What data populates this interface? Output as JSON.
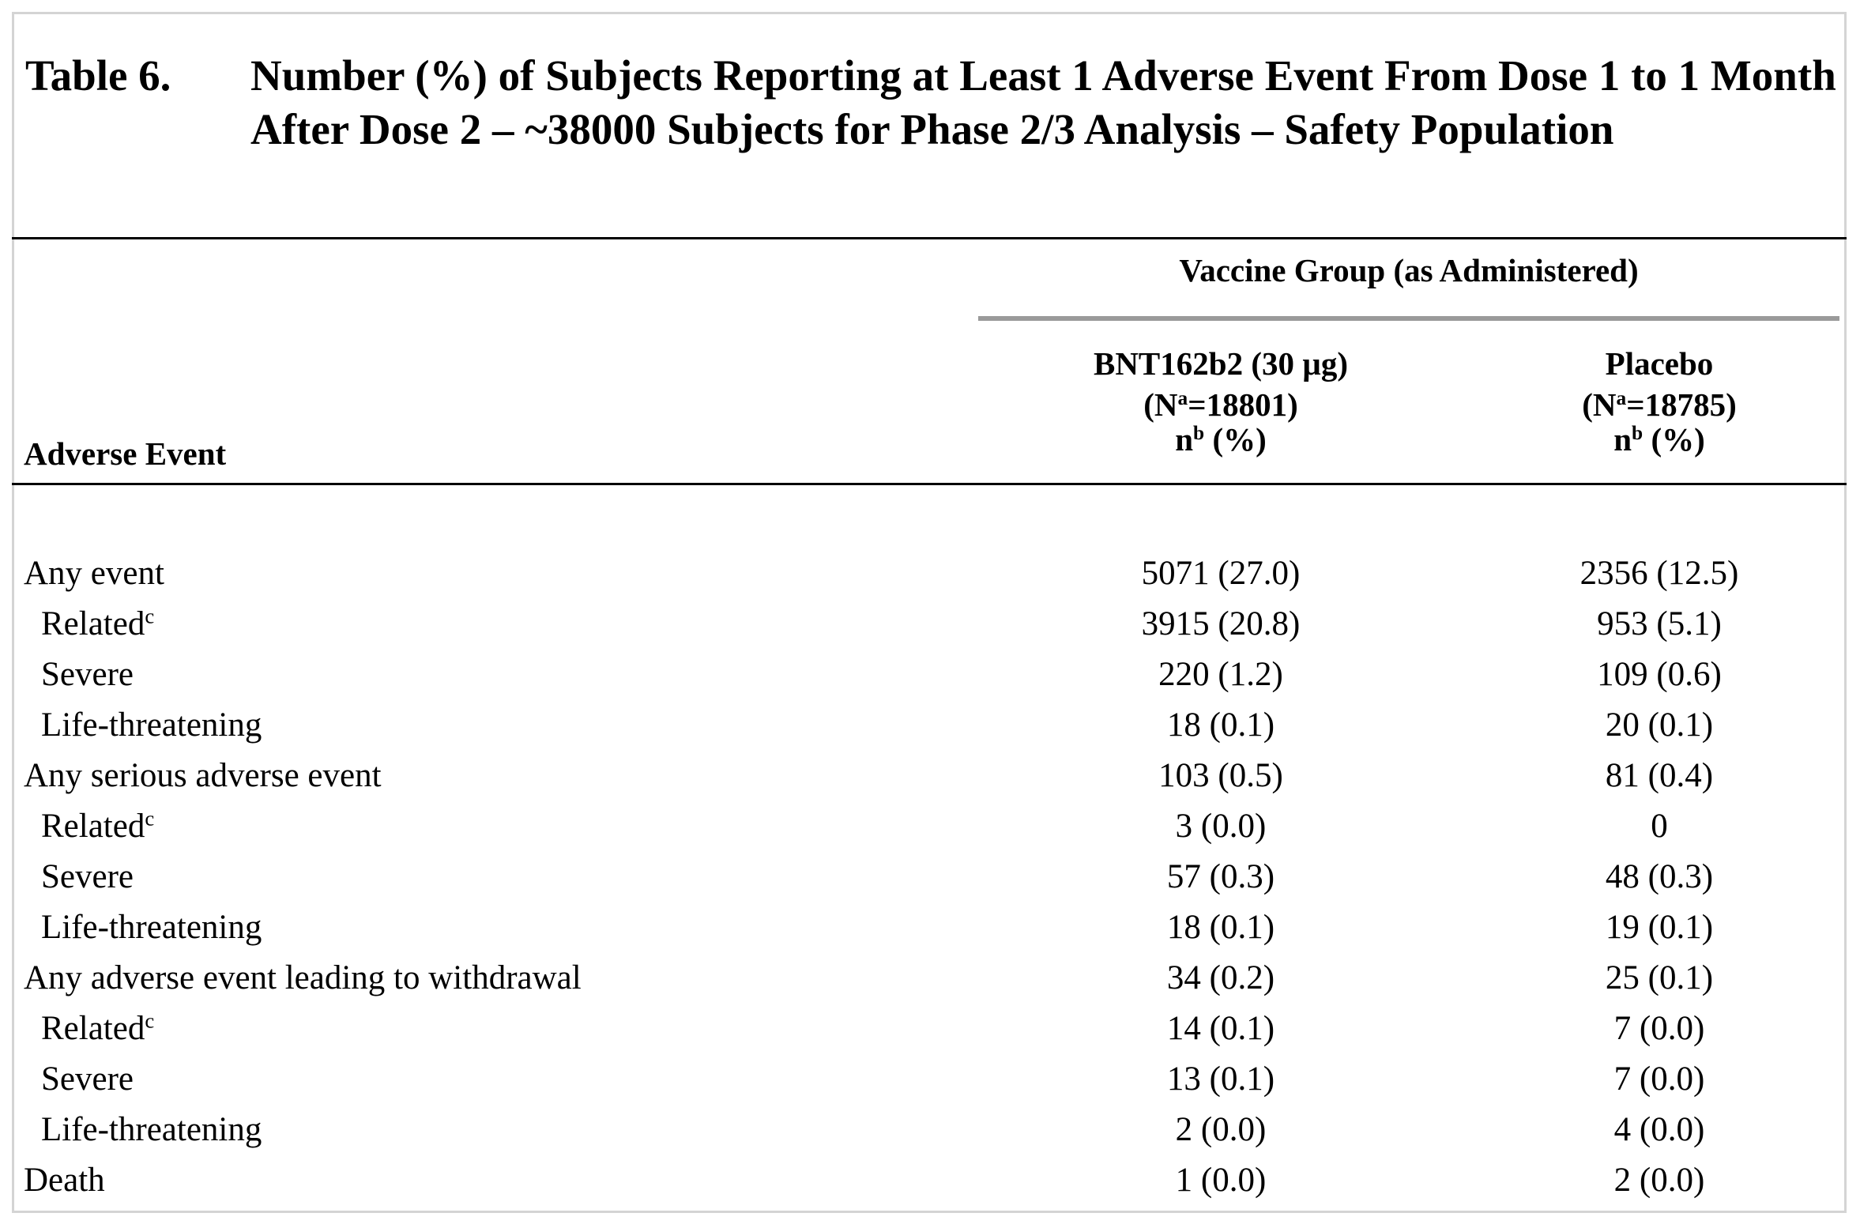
{
  "table": {
    "label": "Table 6.",
    "title": "Number (%) of Subjects Reporting at Least 1 Adverse Event From Dose 1 to 1 Month After Dose 2 – ~38000 Subjects for Phase 2/3 Analysis – Safety Population",
    "group_header": "Vaccine Group (as Administered)",
    "row_header": "Adverse Event",
    "columns": [
      {
        "name": "BNT162b2 (30 µg)",
        "n_prefix": "(N",
        "n_sup": "a",
        "n_value": "=18801)",
        "stat_prefix": "n",
        "stat_sup": "b",
        "stat_suffix": " (%)"
      },
      {
        "name": "Placebo",
        "n_prefix": "(N",
        "n_sup": "a",
        "n_value": "=18785)",
        "stat_prefix": "n",
        "stat_sup": "b",
        "stat_suffix": " (%)"
      }
    ],
    "rows": [
      {
        "label": "Any event",
        "sup": "",
        "indent": false,
        "v1": "5071 (27.0)",
        "v2": "2356 (12.5)"
      },
      {
        "label": "Related",
        "sup": "c",
        "indent": true,
        "v1": "3915 (20.8)",
        "v2": "953 (5.1)"
      },
      {
        "label": "Severe",
        "sup": "",
        "indent": true,
        "v1": "220 (1.2)",
        "v2": "109 (0.6)"
      },
      {
        "label": "Life-threatening",
        "sup": "",
        "indent": true,
        "v1": "18 (0.1)",
        "v2": "20 (0.1)"
      },
      {
        "label": "Any serious adverse event",
        "sup": "",
        "indent": false,
        "v1": "103 (0.5)",
        "v2": "81 (0.4)"
      },
      {
        "label": "Related",
        "sup": "c",
        "indent": true,
        "v1": "3 (0.0)",
        "v2": "0"
      },
      {
        "label": "Severe",
        "sup": "",
        "indent": true,
        "v1": "57 (0.3)",
        "v2": "48 (0.3)"
      },
      {
        "label": "Life-threatening",
        "sup": "",
        "indent": true,
        "v1": "18 (0.1)",
        "v2": "19 (0.1)"
      },
      {
        "label": "Any adverse event leading to withdrawal",
        "sup": "",
        "indent": false,
        "v1": "34 (0.2)",
        "v2": "25 (0.1)"
      },
      {
        "label": "Related",
        "sup": "c",
        "indent": true,
        "v1": "14 (0.1)",
        "v2": "7 (0.0)"
      },
      {
        "label": "Severe",
        "sup": "",
        "indent": true,
        "v1": "13 (0.1)",
        "v2": "7 (0.0)"
      },
      {
        "label": "Life-threatening",
        "sup": "",
        "indent": true,
        "v1": "2 (0.0)",
        "v2": "4 (0.0)"
      },
      {
        "label": "Death",
        "sup": "",
        "indent": false,
        "v1": "1 (0.0)",
        "v2": "2 (0.0)"
      }
    ]
  }
}
